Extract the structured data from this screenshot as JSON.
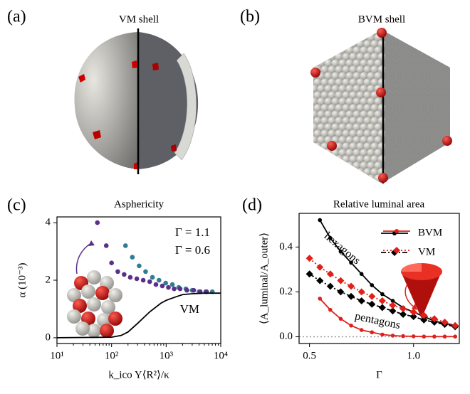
{
  "images": [
    {
      "panel_label": "(a)",
      "title": "VM shell"
    },
    {
      "panel_label": "(b)",
      "title": "BVM shell"
    }
  ],
  "chart_data": [
    {
      "type": "line",
      "panel_label": "(c)",
      "title": "Asphericity",
      "x_label": "k_ico Y⟨R²⟩/κ",
      "y_label": "α (10⁻³)",
      "x_scale": "log",
      "xlim": [
        10,
        10000
      ],
      "xticks": [
        {
          "value": 10,
          "label": "10¹"
        },
        {
          "value": 100,
          "label": "10²"
        },
        {
          "value": 1000,
          "label": "10³"
        },
        {
          "value": 10000,
          "label": "10⁴"
        }
      ],
      "ylim": [
        -0.2,
        4.2
      ],
      "yticks": [
        0,
        2,
        4
      ],
      "series": [
        {
          "name": "Γ = 1.1",
          "color": "#2e7d94",
          "marker": "circle",
          "linestyle": "none",
          "x": [
            180,
            240,
            320,
            420,
            560,
            740,
            980,
            1300,
            1700,
            2300,
            3000,
            4000,
            5300,
            7000
          ],
          "values": [
            3.2,
            2.8,
            2.5,
            2.3,
            2.1,
            2.0,
            1.9,
            1.85,
            1.75,
            1.7,
            1.65,
            1.6,
            1.6,
            1.6
          ]
        },
        {
          "name": "Γ = 0.6",
          "color": "#5b2f8a",
          "marker": "circle",
          "linestyle": "none",
          "x": [
            55,
            80,
            100,
            130,
            170,
            220,
            290,
            380,
            500,
            650,
            850,
            1100,
            1400,
            1800,
            2400,
            3200,
            4200,
            5500
          ],
          "values": [
            4.0,
            3.2,
            2.6,
            2.3,
            2.2,
            2.1,
            2.05,
            2.0,
            1.95,
            1.85,
            1.8,
            1.75,
            1.7,
            1.7,
            1.65,
            1.65,
            1.6,
            1.6
          ]
        },
        {
          "name": "VM",
          "color": "#000000",
          "marker": null,
          "linestyle": "solid",
          "x": [
            10,
            100,
            150,
            200,
            300,
            500,
            800,
            1000,
            1500,
            2000,
            3000,
            5000,
            10000
          ],
          "values": [
            0,
            0.02,
            0.08,
            0.2,
            0.5,
            0.9,
            1.2,
            1.3,
            1.42,
            1.5,
            1.53,
            1.55,
            1.55
          ]
        }
      ]
    },
    {
      "type": "line",
      "panel_label": "(d)",
      "title": "Relative luminal area",
      "x_label": "Γ",
      "y_label": "⟨A_luminal/A_outer⟩",
      "xlim": [
        0.45,
        1.22
      ],
      "xticks": [
        0.5,
        {
          "value": 1,
          "label": "1.0"
        }
      ],
      "ylim": [
        -0.03,
        0.55
      ],
      "yticks": [
        {
          "value": 0,
          "label": "0.0"
        },
        0.2,
        0.4
      ],
      "reference_line": 0,
      "legend": "upper right",
      "annotations": [
        {
          "text": "hexagons",
          "color": "#000000"
        },
        {
          "text": "pentagons",
          "color": "#e0201b"
        }
      ],
      "series": [
        {
          "name": "BVM",
          "color": "#000000",
          "marker": "circle",
          "linestyle": "solid",
          "x": [
            0.55,
            0.6,
            0.65,
            0.7,
            0.75,
            0.8,
            0.85,
            0.9,
            0.95,
            1.0,
            1.05,
            1.1,
            1.15,
            1.2
          ],
          "values": [
            0.52,
            0.44,
            0.38,
            0.33,
            0.28,
            0.23,
            0.19,
            0.16,
            0.13,
            0.11,
            0.09,
            0.07,
            0.06,
            0.05
          ]
        },
        {
          "name": "BVM",
          "color": "#e0201b",
          "marker": "circle",
          "linestyle": "solid",
          "x": [
            0.55,
            0.6,
            0.65,
            0.7,
            0.75,
            0.8,
            0.85,
            0.9,
            0.95,
            1.0,
            1.05,
            1.1,
            1.15,
            1.2
          ],
          "values": [
            0.17,
            0.12,
            0.08,
            0.05,
            0.03,
            0.02,
            0.01,
            0.005,
            0.003,
            0.002,
            0.001,
            0.001,
            0.001,
            0.001
          ]
        },
        {
          "name": "VM",
          "color": "#000000",
          "marker": "diamond",
          "linestyle": "dashdot",
          "x": [
            0.5,
            0.55,
            0.6,
            0.65,
            0.7,
            0.75,
            0.8,
            0.85,
            0.9,
            0.95,
            1.0,
            1.05,
            1.1,
            1.15,
            1.2
          ],
          "values": [
            0.28,
            0.25,
            0.225,
            0.2,
            0.18,
            0.16,
            0.145,
            0.13,
            0.115,
            0.1,
            0.09,
            0.075,
            0.065,
            0.055,
            0.045
          ]
        },
        {
          "name": "VM",
          "color": "#e0201b",
          "marker": "diamond",
          "linestyle": "dotted",
          "x": [
            0.5,
            0.55,
            0.6,
            0.65,
            0.7,
            0.75,
            0.8,
            0.85,
            0.9,
            0.95,
            1.0,
            1.05,
            1.1,
            1.15,
            1.2
          ],
          "values": [
            0.35,
            0.31,
            0.28,
            0.25,
            0.225,
            0.2,
            0.18,
            0.16,
            0.14,
            0.125,
            0.11,
            0.095,
            0.08,
            0.065,
            0.05
          ]
        }
      ]
    }
  ]
}
